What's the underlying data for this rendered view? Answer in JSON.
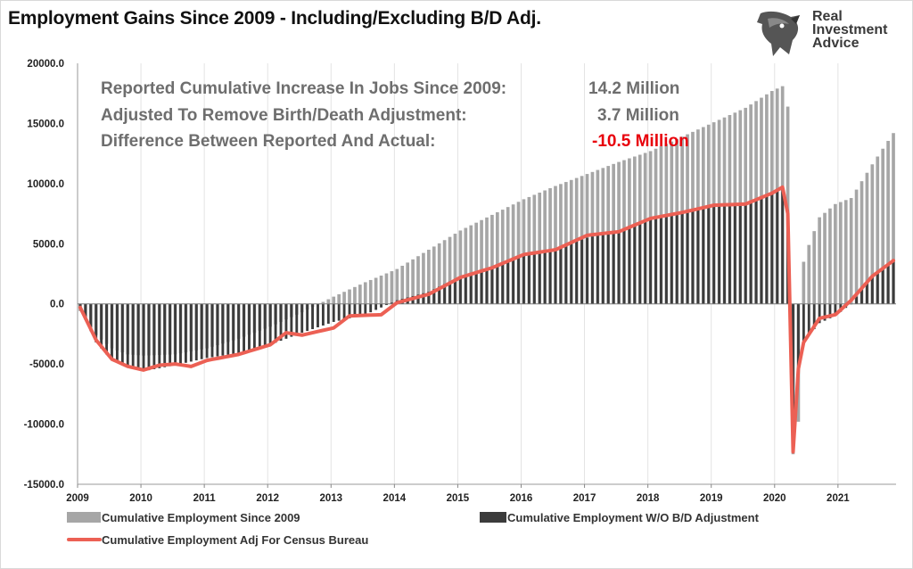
{
  "title": "Employment Gains Since 2009 - Including/Excluding B/D Adj.",
  "logo": {
    "lines": [
      "Real",
      "Investment",
      "Advice"
    ]
  },
  "annotations": [
    {
      "label": "Reported Cumulative Increase In Jobs Since 2009:",
      "value": "14.2 Million",
      "color": "#6e6e6e"
    },
    {
      "label": "Adjusted To Remove Birth/Death Adjustment:",
      "value": "3.7 Million",
      "color": "#6e6e6e"
    },
    {
      "label": "Difference Between Reported And Actual:",
      "value": "-10.5 Million",
      "color": "#e8000b"
    }
  ],
  "chart_data": {
    "type": "bar",
    "x_start": "2009-01",
    "x_end": "2021-11",
    "frequency": "monthly",
    "x_tick_labels": [
      "2009",
      "2010",
      "2011",
      "2012",
      "2013",
      "2014",
      "2015",
      "2016",
      "2017",
      "2018",
      "2019",
      "2020",
      "2021"
    ],
    "ylim": [
      -15000,
      20000
    ],
    "y_tick_labels": [
      "20000.0",
      "15000.0",
      "10000.0",
      "5000.0",
      "0.0",
      "-5000.0",
      "-10000.0",
      "-15000.0"
    ],
    "grid": "vertical",
    "legend_position": "bottom",
    "series": [
      {
        "name": "Cumulative Employment Since 2009",
        "render": "bar",
        "color": "#a6a6a6",
        "anchors": [
          [
            "2009-01",
            -600
          ],
          [
            "2009-04",
            -2600
          ],
          [
            "2009-07",
            -3700
          ],
          [
            "2009-10",
            -4200
          ],
          [
            "2010-01",
            -4300
          ],
          [
            "2010-07",
            -4200
          ],
          [
            "2011-01",
            -3700
          ],
          [
            "2011-07",
            -2900
          ],
          [
            "2012-01",
            -1900
          ],
          [
            "2012-07",
            -700
          ],
          [
            "2013-01",
            600
          ],
          [
            "2013-07",
            1800
          ],
          [
            "2014-01",
            2900
          ],
          [
            "2014-07",
            4500
          ],
          [
            "2015-01",
            6100
          ],
          [
            "2015-07",
            7400
          ],
          [
            "2016-01",
            8700
          ],
          [
            "2016-07",
            9800
          ],
          [
            "2017-01",
            10800
          ],
          [
            "2017-07",
            11800
          ],
          [
            "2018-01",
            12700
          ],
          [
            "2018-07",
            13900
          ],
          [
            "2019-01",
            15100
          ],
          [
            "2019-07",
            16300
          ],
          [
            "2019-12",
            17700
          ],
          [
            "2020-02",
            18100
          ],
          [
            "2020-03",
            16400
          ],
          [
            "2020-04",
            -12500
          ],
          [
            "2020-05",
            -9800
          ],
          [
            "2020-06",
            3500
          ],
          [
            "2020-07",
            4900
          ],
          [
            "2020-09",
            7200
          ],
          [
            "2020-12",
            8300
          ],
          [
            "2021-03",
            8800
          ],
          [
            "2021-07",
            11600
          ],
          [
            "2021-11",
            14200
          ]
        ]
      },
      {
        "name": "Cumulative Employment W/O B/D Adjustment",
        "render": "bar",
        "color": "#3b3b3b",
        "anchors": [
          [
            "2009-01",
            -400
          ],
          [
            "2009-04",
            -3200
          ],
          [
            "2009-07",
            -4700
          ],
          [
            "2009-10",
            -5300
          ],
          [
            "2010-01",
            -5600
          ],
          [
            "2010-07",
            -5100
          ],
          [
            "2011-01",
            -4500
          ],
          [
            "2011-07",
            -4100
          ],
          [
            "2012-01",
            -3400
          ],
          [
            "2012-07",
            -2400
          ],
          [
            "2013-01",
            -1500
          ],
          [
            "2013-07",
            -900
          ],
          [
            "2014-01",
            300
          ],
          [
            "2014-07",
            1000
          ],
          [
            "2015-01",
            2300
          ],
          [
            "2015-07",
            3000
          ],
          [
            "2016-01",
            4100
          ],
          [
            "2016-07",
            4600
          ],
          [
            "2017-01",
            5500
          ],
          [
            "2017-07",
            6100
          ],
          [
            "2018-01",
            7100
          ],
          [
            "2018-07",
            7600
          ],
          [
            "2019-01",
            8300
          ],
          [
            "2019-07",
            8400
          ],
          [
            "2019-12",
            9300
          ],
          [
            "2020-02",
            9700
          ],
          [
            "2020-03",
            7800
          ],
          [
            "2020-04",
            -12300
          ],
          [
            "2020-05",
            -5600
          ],
          [
            "2020-06",
            -3100
          ],
          [
            "2020-09",
            -1600
          ],
          [
            "2020-12",
            -1000
          ],
          [
            "2021-03",
            0
          ],
          [
            "2021-07",
            2400
          ],
          [
            "2021-11",
            3700
          ]
        ]
      },
      {
        "name": "Cumulative Employment Adj For Census Bureau",
        "render": "line",
        "color": "#ec6054",
        "anchors": [
          [
            "2009-01",
            -300
          ],
          [
            "2009-04",
            -3000
          ],
          [
            "2009-07",
            -4600
          ],
          [
            "2009-10",
            -5200
          ],
          [
            "2010-01",
            -5500
          ],
          [
            "2010-04",
            -5100
          ],
          [
            "2010-07",
            -5000
          ],
          [
            "2010-10",
            -5200
          ],
          [
            "2011-01",
            -4700
          ],
          [
            "2011-07",
            -4200
          ],
          [
            "2012-01",
            -3400
          ],
          [
            "2012-04",
            -2400
          ],
          [
            "2012-07",
            -2600
          ],
          [
            "2013-01",
            -2000
          ],
          [
            "2013-04",
            -1000
          ],
          [
            "2013-10",
            -900
          ],
          [
            "2014-01",
            100
          ],
          [
            "2014-07",
            800
          ],
          [
            "2015-01",
            2200
          ],
          [
            "2015-07",
            3000
          ],
          [
            "2016-01",
            4100
          ],
          [
            "2016-07",
            4500
          ],
          [
            "2017-01",
            5700
          ],
          [
            "2017-07",
            6000
          ],
          [
            "2018-01",
            7100
          ],
          [
            "2018-07",
            7600
          ],
          [
            "2019-01",
            8200
          ],
          [
            "2019-07",
            8300
          ],
          [
            "2019-12",
            9200
          ],
          [
            "2020-02",
            9700
          ],
          [
            "2020-03",
            7500
          ],
          [
            "2020-04",
            -12300
          ],
          [
            "2020-05",
            -5400
          ],
          [
            "2020-06",
            -3200
          ],
          [
            "2020-09",
            -1200
          ],
          [
            "2020-12",
            -900
          ],
          [
            "2021-03",
            300
          ],
          [
            "2021-07",
            2300
          ],
          [
            "2021-11",
            3600
          ]
        ]
      }
    ]
  }
}
